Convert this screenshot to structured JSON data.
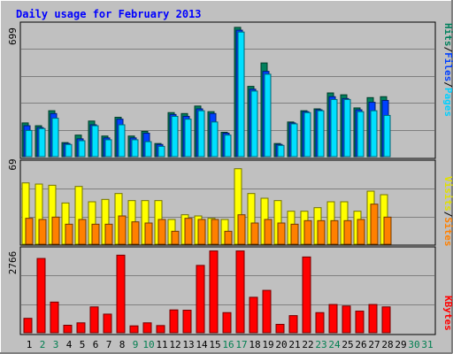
{
  "chart_data": [
    {
      "type": "bar",
      "title": "Daily usage for February 2013",
      "panel": "top",
      "ytick_max": "699",
      "ylim": [
        0,
        699
      ],
      "ylabel_parts": [
        "Pages",
        "Files",
        "Hits"
      ],
      "x": [
        1,
        2,
        3,
        4,
        5,
        6,
        7,
        8,
        9,
        10,
        11,
        12,
        13,
        14,
        15,
        16,
        17,
        18,
        19,
        20,
        21,
        22,
        23,
        24,
        25,
        26,
        27,
        28,
        29,
        30,
        31
      ],
      "series": [
        {
          "name": "Hits",
          "values": [
            180,
            165,
            245,
            75,
            115,
            190,
            110,
            210,
            110,
            135,
            70,
            235,
            230,
            270,
            240,
            130,
            690,
            375,
            500,
            70,
            185,
            245,
            255,
            340,
            330,
            260,
            315,
            320,
            0,
            0,
            0
          ]
        },
        {
          "name": "Files",
          "values": [
            165,
            155,
            230,
            70,
            95,
            170,
            100,
            200,
            100,
            125,
            65,
            225,
            215,
            255,
            230,
            125,
            675,
            360,
            455,
            65,
            180,
            240,
            250,
            320,
            310,
            250,
            290,
            300,
            0,
            0,
            0
          ]
        },
        {
          "name": "Pages",
          "values": [
            140,
            150,
            205,
            65,
            85,
            165,
            90,
            170,
            90,
            80,
            55,
            215,
            200,
            245,
            185,
            115,
            665,
            350,
            440,
            60,
            175,
            235,
            245,
            305,
            305,
            240,
            245,
            220,
            0,
            0,
            0
          ]
        }
      ]
    },
    {
      "type": "bar",
      "panel": "middle",
      "ytick_max": "69",
      "ylim": [
        0,
        69
      ],
      "ylabel_parts": [
        "Sites",
        "Visits"
      ],
      "x": [
        1,
        2,
        3,
        4,
        5,
        6,
        7,
        8,
        9,
        10,
        11,
        12,
        13,
        14,
        15,
        16,
        17,
        18,
        19,
        20,
        21,
        22,
        23,
        24,
        25,
        26,
        27,
        28,
        29,
        30,
        31
      ],
      "series": [
        {
          "name": "Visits",
          "values": [
            52,
            51,
            50,
            35,
            49,
            36,
            38,
            43,
            37,
            37,
            37,
            21,
            25,
            24,
            22,
            21,
            64,
            43,
            39,
            37,
            28,
            28,
            31,
            36,
            36,
            28,
            45,
            42,
            0,
            0,
            0
          ]
        },
        {
          "name": "Sites",
          "values": [
            22,
            21,
            23,
            17,
            21,
            17,
            17,
            24,
            19,
            18,
            21,
            11,
            22,
            21,
            21,
            11,
            25,
            18,
            21,
            18,
            17,
            20,
            20,
            20,
            20,
            21,
            34,
            23,
            0,
            0,
            0
          ]
        }
      ]
    },
    {
      "type": "bar",
      "panel": "bottom",
      "ytick_max": "2766",
      "ylim": [
        0,
        2766
      ],
      "ylabel_parts": [
        "KBytes"
      ],
      "x": [
        1,
        2,
        3,
        4,
        5,
        6,
        7,
        8,
        9,
        10,
        11,
        12,
        13,
        14,
        15,
        16,
        17,
        18,
        19,
        20,
        21,
        22,
        23,
        24,
        25,
        26,
        27,
        28,
        29,
        30,
        31
      ],
      "series": [
        {
          "name": "KBytes",
          "values": [
            480,
            2470,
            1020,
            250,
            330,
            860,
            620,
            2580,
            230,
            330,
            240,
            760,
            750,
            2240,
            2720,
            670,
            2720,
            1180,
            1410,
            280,
            570,
            2520,
            670,
            940,
            890,
            720,
            940,
            860,
            0,
            0,
            0
          ]
        }
      ],
      "x_tick_colors": {
        "weekday": "#000000",
        "weekend": "#007f50"
      },
      "weekend_days": [
        2,
        3,
        9,
        10,
        16,
        17,
        23,
        24,
        30,
        31
      ]
    }
  ],
  "colors": {
    "hits": "#00805c",
    "files": "#0040ff",
    "pages": "#00e0ff",
    "visits": "#ffff00",
    "sites": "#ff8000",
    "kbytes": "#ff0000",
    "panel_bg": "#c0c0c0",
    "title": "#0000ff"
  }
}
